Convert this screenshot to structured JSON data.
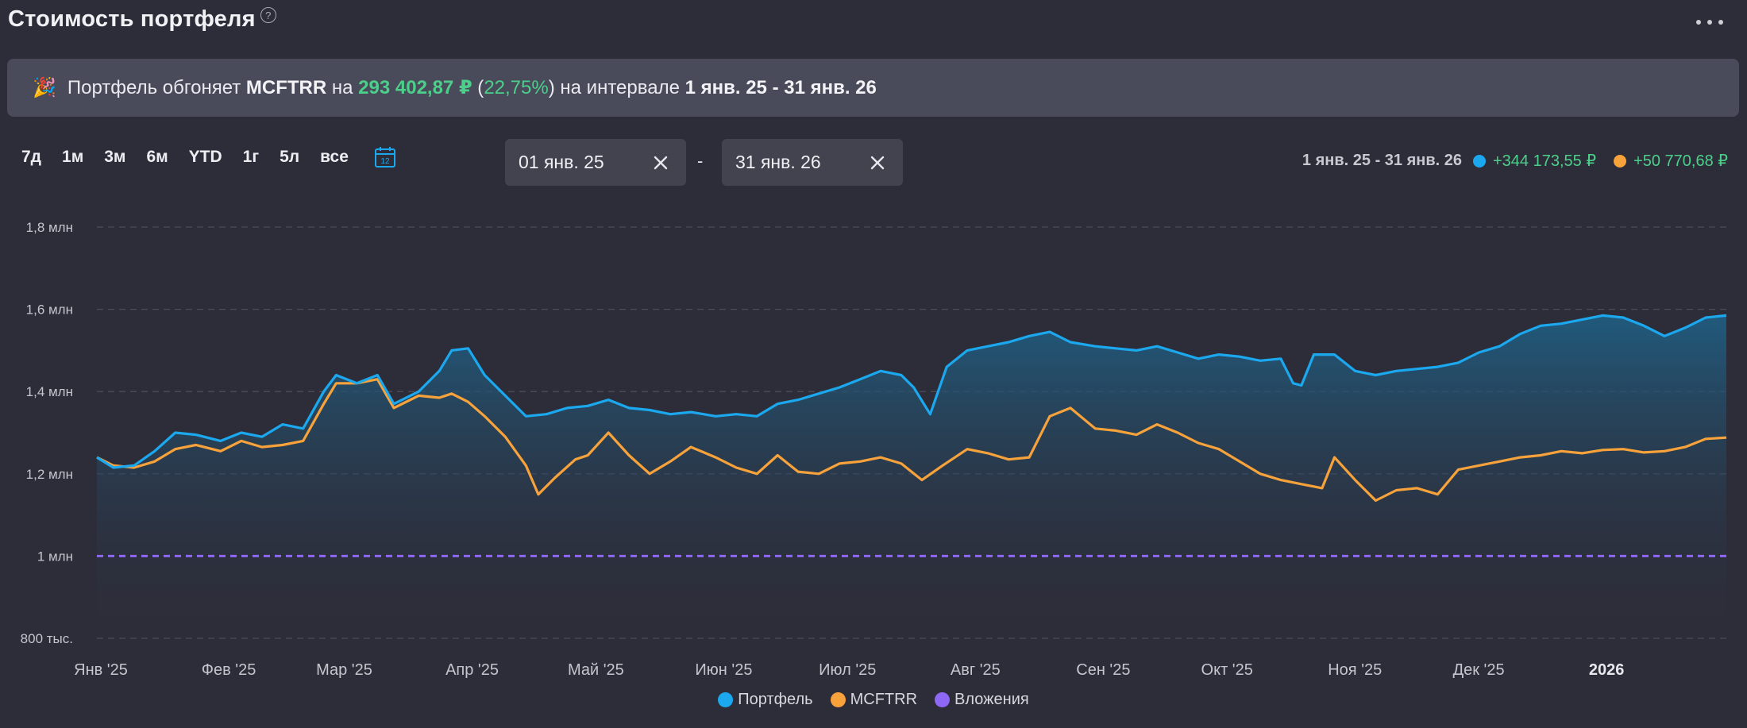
{
  "header": {
    "title": "Стоимость портфеля",
    "help_icon": "question-circle-icon",
    "more_icon": "more-horizontal-icon"
  },
  "banner": {
    "icon": "🎉",
    "text_1": "Портфель обгоняет ",
    "benchmark": "MCFTRR",
    "text_2": " на ",
    "amount": "293 402,87 ₽",
    "percent_open": " (",
    "percent": "22,75%",
    "percent_close": ")",
    "text_3": " на интервале ",
    "interval": "1 янв. 25 - 31 янв. 26"
  },
  "ranges": [
    "7д",
    "1м",
    "3м",
    "6м",
    "YTD",
    "1г",
    "5л",
    "все"
  ],
  "calendar_day": "12",
  "date_from": {
    "value": "01 янв. 25"
  },
  "date_separator": "-",
  "date_to": {
    "value": "31 янв. 26"
  },
  "summary": {
    "period": "1 янв. 25 - 31 янв. 26",
    "portfolio_change": "+344 173,55 ₽",
    "benchmark_change": "+50 770,68 ₽"
  },
  "colors": {
    "portfolio": "#1ba8ee",
    "benchmark": "#f7a23a",
    "investments": "#8f67f5",
    "positive": "#4ccf8a"
  },
  "chart_data": {
    "type": "line",
    "ylim": [
      800000,
      1800000
    ],
    "y_ticks": [
      {
        "value": 1800000,
        "label": "1,8 млн"
      },
      {
        "value": 1600000,
        "label": "1,6 млн"
      },
      {
        "value": 1400000,
        "label": "1,4 млн"
      },
      {
        "value": 1200000,
        "label": "1,2 млн"
      },
      {
        "value": 1000000,
        "label": "1 млн"
      },
      {
        "value": 800000,
        "label": "800 тыс."
      }
    ],
    "x_ticks": [
      {
        "x": "2025-01-01",
        "label": "Янв '25",
        "bold": false
      },
      {
        "x": "2025-02-01",
        "label": "Фев '25",
        "bold": false
      },
      {
        "x": "2025-03-01",
        "label": "Мар '25",
        "bold": false
      },
      {
        "x": "2025-04-01",
        "label": "Апр '25",
        "bold": false
      },
      {
        "x": "2025-05-01",
        "label": "Май '25",
        "bold": false
      },
      {
        "x": "2025-06-01",
        "label": "Июн '25",
        "bold": false
      },
      {
        "x": "2025-07-01",
        "label": "Июл '25",
        "bold": false
      },
      {
        "x": "2025-08-01",
        "label": "Авг '25",
        "bold": false
      },
      {
        "x": "2025-09-01",
        "label": "Сен '25",
        "bold": false
      },
      {
        "x": "2025-10-01",
        "label": "Окт '25",
        "bold": false
      },
      {
        "x": "2025-11-01",
        "label": "Ноя '25",
        "bold": false
      },
      {
        "x": "2025-12-01",
        "label": "Дек '25",
        "bold": false
      },
      {
        "x": "2026-01-01",
        "label": "2026",
        "bold": true
      }
    ],
    "x_range": [
      "2025-01-01",
      "2026-01-31"
    ],
    "grid": "horizontal dashed",
    "legend_position": "bottom-center",
    "series": [
      {
        "name": "Портфель",
        "color": "#1ba8ee",
        "area": true,
        "points": [
          [
            "2025-01-01",
            1240000
          ],
          [
            "2025-01-05",
            1215000
          ],
          [
            "2025-01-10",
            1220000
          ],
          [
            "2025-01-15",
            1255000
          ],
          [
            "2025-01-20",
            1300000
          ],
          [
            "2025-01-25",
            1295000
          ],
          [
            "2025-01-31",
            1280000
          ],
          [
            "2025-02-05",
            1300000
          ],
          [
            "2025-02-10",
            1290000
          ],
          [
            "2025-02-15",
            1320000
          ],
          [
            "2025-02-20",
            1310000
          ],
          [
            "2025-02-25",
            1400000
          ],
          [
            "2025-02-28",
            1440000
          ],
          [
            "2025-03-05",
            1420000
          ],
          [
            "2025-03-10",
            1440000
          ],
          [
            "2025-03-14",
            1370000
          ],
          [
            "2025-03-20",
            1400000
          ],
          [
            "2025-03-25",
            1450000
          ],
          [
            "2025-03-28",
            1500000
          ],
          [
            "2025-04-01",
            1505000
          ],
          [
            "2025-04-05",
            1440000
          ],
          [
            "2025-04-10",
            1390000
          ],
          [
            "2025-04-15",
            1340000
          ],
          [
            "2025-04-20",
            1345000
          ],
          [
            "2025-04-25",
            1360000
          ],
          [
            "2025-04-30",
            1365000
          ],
          [
            "2025-05-05",
            1380000
          ],
          [
            "2025-05-10",
            1360000
          ],
          [
            "2025-05-15",
            1355000
          ],
          [
            "2025-05-20",
            1345000
          ],
          [
            "2025-05-25",
            1350000
          ],
          [
            "2025-05-31",
            1340000
          ],
          [
            "2025-06-05",
            1345000
          ],
          [
            "2025-06-10",
            1340000
          ],
          [
            "2025-06-15",
            1370000
          ],
          [
            "2025-06-20",
            1380000
          ],
          [
            "2025-06-25",
            1395000
          ],
          [
            "2025-06-30",
            1410000
          ],
          [
            "2025-07-05",
            1430000
          ],
          [
            "2025-07-10",
            1450000
          ],
          [
            "2025-07-15",
            1440000
          ],
          [
            "2025-07-18",
            1410000
          ],
          [
            "2025-07-22",
            1345000
          ],
          [
            "2025-07-26",
            1460000
          ],
          [
            "2025-07-31",
            1500000
          ],
          [
            "2025-08-05",
            1510000
          ],
          [
            "2025-08-10",
            1520000
          ],
          [
            "2025-08-15",
            1535000
          ],
          [
            "2025-08-20",
            1545000
          ],
          [
            "2025-08-25",
            1520000
          ],
          [
            "2025-08-31",
            1510000
          ],
          [
            "2025-09-05",
            1505000
          ],
          [
            "2025-09-10",
            1500000
          ],
          [
            "2025-09-15",
            1510000
          ],
          [
            "2025-09-20",
            1495000
          ],
          [
            "2025-09-25",
            1480000
          ],
          [
            "2025-09-30",
            1490000
          ],
          [
            "2025-10-05",
            1485000
          ],
          [
            "2025-10-10",
            1475000
          ],
          [
            "2025-10-15",
            1480000
          ],
          [
            "2025-10-18",
            1420000
          ],
          [
            "2025-10-20",
            1415000
          ],
          [
            "2025-10-23",
            1490000
          ],
          [
            "2025-10-28",
            1490000
          ],
          [
            "2025-11-02",
            1450000
          ],
          [
            "2025-11-07",
            1440000
          ],
          [
            "2025-11-12",
            1450000
          ],
          [
            "2025-11-17",
            1455000
          ],
          [
            "2025-11-22",
            1460000
          ],
          [
            "2025-11-27",
            1470000
          ],
          [
            "2025-12-02",
            1495000
          ],
          [
            "2025-12-07",
            1510000
          ],
          [
            "2025-12-12",
            1540000
          ],
          [
            "2025-12-17",
            1560000
          ],
          [
            "2025-12-22",
            1565000
          ],
          [
            "2025-12-27",
            1575000
          ],
          [
            "2026-01-01",
            1585000
          ],
          [
            "2026-01-06",
            1580000
          ],
          [
            "2026-01-11",
            1560000
          ],
          [
            "2026-01-16",
            1535000
          ],
          [
            "2026-01-21",
            1555000
          ],
          [
            "2026-01-26",
            1580000
          ],
          [
            "2026-01-31",
            1585000
          ]
        ]
      },
      {
        "name": "MCFTRR",
        "color": "#f7a23a",
        "area": false,
        "points": [
          [
            "2025-01-01",
            1240000
          ],
          [
            "2025-01-05",
            1220000
          ],
          [
            "2025-01-10",
            1215000
          ],
          [
            "2025-01-15",
            1230000
          ],
          [
            "2025-01-20",
            1260000
          ],
          [
            "2025-01-25",
            1270000
          ],
          [
            "2025-01-31",
            1255000
          ],
          [
            "2025-02-05",
            1280000
          ],
          [
            "2025-02-10",
            1265000
          ],
          [
            "2025-02-15",
            1270000
          ],
          [
            "2025-02-20",
            1280000
          ],
          [
            "2025-02-25",
            1370000
          ],
          [
            "2025-02-28",
            1420000
          ],
          [
            "2025-03-05",
            1420000
          ],
          [
            "2025-03-10",
            1430000
          ],
          [
            "2025-03-14",
            1360000
          ],
          [
            "2025-03-20",
            1390000
          ],
          [
            "2025-03-25",
            1385000
          ],
          [
            "2025-03-28",
            1395000
          ],
          [
            "2025-04-01",
            1375000
          ],
          [
            "2025-04-05",
            1340000
          ],
          [
            "2025-04-10",
            1290000
          ],
          [
            "2025-04-15",
            1220000
          ],
          [
            "2025-04-18",
            1150000
          ],
          [
            "2025-04-22",
            1190000
          ],
          [
            "2025-04-27",
            1235000
          ],
          [
            "2025-04-30",
            1245000
          ],
          [
            "2025-05-05",
            1300000
          ],
          [
            "2025-05-10",
            1245000
          ],
          [
            "2025-05-15",
            1200000
          ],
          [
            "2025-05-20",
            1230000
          ],
          [
            "2025-05-25",
            1265000
          ],
          [
            "2025-05-31",
            1240000
          ],
          [
            "2025-06-05",
            1215000
          ],
          [
            "2025-06-10",
            1200000
          ],
          [
            "2025-06-15",
            1245000
          ],
          [
            "2025-06-20",
            1205000
          ],
          [
            "2025-06-25",
            1200000
          ],
          [
            "2025-06-30",
            1225000
          ],
          [
            "2025-07-05",
            1230000
          ],
          [
            "2025-07-10",
            1240000
          ],
          [
            "2025-07-15",
            1225000
          ],
          [
            "2025-07-20",
            1185000
          ],
          [
            "2025-07-25",
            1220000
          ],
          [
            "2025-07-31",
            1260000
          ],
          [
            "2025-08-05",
            1250000
          ],
          [
            "2025-08-10",
            1235000
          ],
          [
            "2025-08-15",
            1240000
          ],
          [
            "2025-08-20",
            1340000
          ],
          [
            "2025-08-25",
            1360000
          ],
          [
            "2025-08-31",
            1310000
          ],
          [
            "2025-09-05",
            1305000
          ],
          [
            "2025-09-10",
            1295000
          ],
          [
            "2025-09-15",
            1320000
          ],
          [
            "2025-09-20",
            1300000
          ],
          [
            "2025-09-25",
            1275000
          ],
          [
            "2025-09-30",
            1260000
          ],
          [
            "2025-10-05",
            1230000
          ],
          [
            "2025-10-10",
            1200000
          ],
          [
            "2025-10-15",
            1185000
          ],
          [
            "2025-10-20",
            1175000
          ],
          [
            "2025-10-25",
            1165000
          ],
          [
            "2025-10-28",
            1240000
          ],
          [
            "2025-11-02",
            1185000
          ],
          [
            "2025-11-07",
            1135000
          ],
          [
            "2025-11-12",
            1160000
          ],
          [
            "2025-11-17",
            1165000
          ],
          [
            "2025-11-22",
            1150000
          ],
          [
            "2025-11-27",
            1210000
          ],
          [
            "2025-12-02",
            1220000
          ],
          [
            "2025-12-07",
            1230000
          ],
          [
            "2025-12-12",
            1240000
          ],
          [
            "2025-12-17",
            1245000
          ],
          [
            "2025-12-22",
            1255000
          ],
          [
            "2025-12-27",
            1250000
          ],
          [
            "2026-01-01",
            1258000
          ],
          [
            "2026-01-06",
            1260000
          ],
          [
            "2026-01-11",
            1252000
          ],
          [
            "2026-01-16",
            1255000
          ],
          [
            "2026-01-21",
            1265000
          ],
          [
            "2026-01-26",
            1285000
          ],
          [
            "2026-01-31",
            1288000
          ]
        ]
      },
      {
        "name": "Вложения",
        "color": "#8f67f5",
        "area": false,
        "dashed": true,
        "points": [
          [
            "2025-01-01",
            1000000
          ],
          [
            "2026-01-31",
            1000000
          ]
        ]
      }
    ]
  },
  "legend": [
    {
      "name": "Портфель",
      "color": "#1ba8ee"
    },
    {
      "name": "MCFTRR",
      "color": "#f7a23a"
    },
    {
      "name": "Вложения",
      "color": "#8f67f5"
    }
  ]
}
